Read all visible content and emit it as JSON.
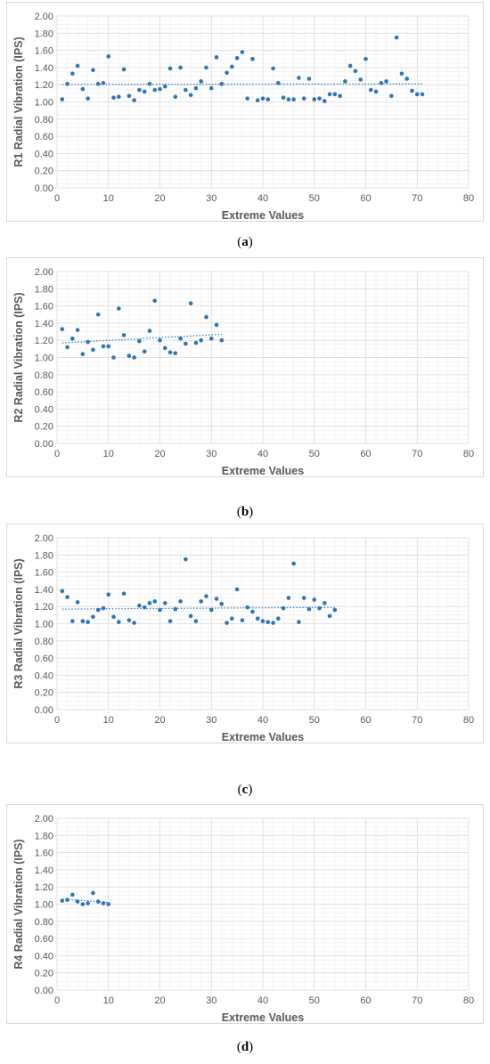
{
  "colors": {
    "point": "#2E75B6",
    "trend": "#2E75B6",
    "grid_major": "#d9d9d9",
    "grid_minor": "#eeeeee"
  },
  "chart_data": [
    {
      "type": "scatter",
      "panel": "a",
      "caption": "(a)",
      "caption_letter": "a",
      "xlabel": "Extreme Values",
      "ylabel": "R1 Radial Vibration (IPS)",
      "xlim": [
        0,
        80
      ],
      "ylim": [
        0,
        2.0
      ],
      "xticks": [
        "0",
        "10",
        "20",
        "30",
        "40",
        "50",
        "60",
        "70",
        "80"
      ],
      "yticks": [
        "0.00",
        "0.20",
        "0.40",
        "0.60",
        "0.80",
        "1.00",
        "1.20",
        "1.40",
        "1.60",
        "1.80",
        "2.00"
      ],
      "grid": true,
      "trendline": {
        "style": "dotted",
        "x": [
          1,
          71
        ],
        "y": [
          1.205,
          1.21
        ]
      },
      "series": [
        {
          "x": [
            1,
            2,
            3,
            4,
            5,
            6,
            7,
            8,
            9,
            10,
            11,
            12,
            13,
            14,
            15,
            16,
            17,
            18,
            19,
            20,
            21,
            22,
            23,
            24,
            25,
            26,
            27,
            28,
            29,
            30,
            31,
            32,
            33,
            34,
            35,
            36,
            37,
            38,
            39,
            40,
            41,
            42,
            43,
            44,
            45,
            46,
            47,
            48,
            49,
            50,
            51,
            52,
            53,
            54,
            55,
            56,
            57,
            58,
            59,
            60,
            61,
            62,
            63,
            64,
            65,
            66,
            67,
            68,
            69,
            70,
            71
          ],
          "y": [
            1.03,
            1.21,
            1.33,
            1.42,
            1.15,
            1.04,
            1.37,
            1.21,
            1.22,
            1.53,
            1.05,
            1.06,
            1.38,
            1.07,
            1.02,
            1.14,
            1.12,
            1.21,
            1.14,
            1.15,
            1.18,
            1.39,
            1.06,
            1.4,
            1.14,
            1.08,
            1.16,
            1.24,
            1.4,
            1.16,
            1.52,
            1.21,
            1.34,
            1.41,
            1.51,
            1.58,
            1.04,
            1.5,
            1.02,
            1.04,
            1.03,
            1.39,
            1.22,
            1.05,
            1.03,
            1.03,
            1.28,
            1.04,
            1.27,
            1.03,
            1.04,
            1.01,
            1.09,
            1.09,
            1.07,
            1.24,
            1.42,
            1.36,
            1.26,
            1.5,
            1.14,
            1.12,
            1.22,
            1.24,
            1.07,
            1.75,
            1.33,
            1.27,
            1.13,
            1.09,
            1.09
          ]
        }
      ]
    },
    {
      "type": "scatter",
      "panel": "b",
      "caption": "(b)",
      "caption_letter": "b",
      "xlabel": "Extreme Values",
      "ylabel": "R2 Radial Vibration (IPS)",
      "xlim": [
        0,
        80
      ],
      "ylim": [
        0,
        2.0
      ],
      "xticks": [
        "0",
        "10",
        "20",
        "30",
        "40",
        "50",
        "60",
        "70",
        "80"
      ],
      "yticks": [
        "0.00",
        "0.20",
        "0.40",
        "0.60",
        "0.80",
        "1.00",
        "1.20",
        "1.40",
        "1.60",
        "1.80",
        "2.00"
      ],
      "grid": true,
      "trendline": {
        "style": "dotted",
        "x": [
          1,
          32
        ],
        "y": [
          1.17,
          1.27
        ]
      },
      "series": [
        {
          "x": [
            1,
            2,
            3,
            4,
            5,
            6,
            7,
            8,
            9,
            10,
            11,
            12,
            13,
            14,
            15,
            16,
            17,
            18,
            19,
            20,
            21,
            22,
            23,
            24,
            25,
            26,
            27,
            28,
            29,
            30,
            31,
            32
          ],
          "y": [
            1.33,
            1.12,
            1.22,
            1.32,
            1.04,
            1.18,
            1.09,
            1.5,
            1.13,
            1.13,
            1.0,
            1.57,
            1.26,
            1.02,
            1.0,
            1.19,
            1.07,
            1.31,
            1.66,
            1.2,
            1.11,
            1.06,
            1.05,
            1.22,
            1.16,
            1.63,
            1.17,
            1.2,
            1.47,
            1.22,
            1.38,
            1.2
          ]
        }
      ]
    },
    {
      "type": "scatter",
      "panel": "c",
      "caption": "(c)",
      "caption_letter": "c",
      "xlabel": "Extreme Values",
      "ylabel": "R3 Radial Vibration (IPS)",
      "xlim": [
        0,
        80
      ],
      "ylim": [
        0,
        2.0
      ],
      "xticks": [
        "0",
        "10",
        "20",
        "30",
        "40",
        "50",
        "60",
        "70",
        "80"
      ],
      "yticks": [
        "0.00",
        "0.20",
        "0.40",
        "0.60",
        "0.80",
        "1.00",
        "1.20",
        "1.40",
        "1.60",
        "1.80",
        "2.00"
      ],
      "grid": true,
      "trendline": {
        "style": "dotted",
        "x": [
          1,
          54
        ],
        "y": [
          1.17,
          1.19
        ]
      },
      "series": [
        {
          "x": [
            1,
            2,
            3,
            4,
            5,
            6,
            7,
            8,
            9,
            10,
            11,
            12,
            13,
            14,
            15,
            16,
            17,
            18,
            19,
            20,
            21,
            22,
            23,
            24,
            25,
            26,
            27,
            28,
            29,
            30,
            31,
            32,
            33,
            34,
            35,
            36,
            37,
            38,
            39,
            40,
            41,
            42,
            43,
            44,
            45,
            46,
            47,
            48,
            49,
            50,
            51,
            52,
            53,
            54
          ],
          "y": [
            1.38,
            1.31,
            1.03,
            1.25,
            1.03,
            1.02,
            1.08,
            1.16,
            1.18,
            1.34,
            1.08,
            1.02,
            1.35,
            1.04,
            1.01,
            1.21,
            1.19,
            1.24,
            1.26,
            1.16,
            1.24,
            1.03,
            1.17,
            1.26,
            1.75,
            1.09,
            1.03,
            1.26,
            1.32,
            1.16,
            1.29,
            1.23,
            1.01,
            1.06,
            1.4,
            1.04,
            1.19,
            1.14,
            1.06,
            1.03,
            1.02,
            1.01,
            1.06,
            1.18,
            1.3,
            1.7,
            1.02,
            1.3,
            1.17,
            1.28,
            1.18,
            1.24,
            1.09,
            1.16
          ]
        }
      ]
    },
    {
      "type": "scatter",
      "panel": "d",
      "caption": "(d)",
      "caption_letter": "d",
      "xlabel": "Extreme Values",
      "ylabel": "R4 Radial Vibration (IPS)",
      "xlim": [
        0,
        80
      ],
      "ylim": [
        0,
        2.0
      ],
      "xticks": [
        "0",
        "10",
        "20",
        "30",
        "40",
        "50",
        "60",
        "70",
        "80"
      ],
      "yticks": [
        "0.00",
        "0.20",
        "0.40",
        "0.60",
        "0.80",
        "1.00",
        "1.20",
        "1.40",
        "1.60",
        "1.80",
        "2.00"
      ],
      "grid": true,
      "trendline": {
        "style": "dotted",
        "x": [
          1,
          10
        ],
        "y": [
          1.06,
          1.02
        ]
      },
      "series": [
        {
          "x": [
            1,
            2,
            3,
            4,
            5,
            6,
            7,
            8,
            9,
            10
          ],
          "y": [
            1.04,
            1.05,
            1.11,
            1.03,
            1.0,
            1.01,
            1.13,
            1.03,
            1.01,
            1.0
          ]
        }
      ]
    }
  ]
}
